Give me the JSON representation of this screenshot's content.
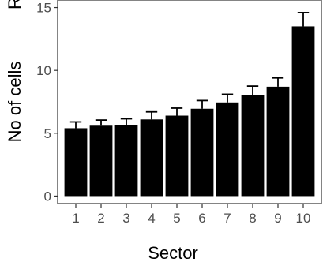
{
  "chart_data": {
    "type": "bar",
    "title": "",
    "xlabel": "Sector",
    "ylabel": "No of cells",
    "ylabel_cropped_top": "R",
    "categories": [
      "1",
      "2",
      "3",
      "4",
      "5",
      "6",
      "7",
      "8",
      "9",
      "10"
    ],
    "values": [
      5.4,
      5.6,
      5.65,
      6.1,
      6.4,
      6.95,
      7.45,
      8.05,
      8.7,
      13.5
    ],
    "error_upper": [
      5.9,
      6.05,
      6.15,
      6.7,
      7.0,
      7.6,
      8.1,
      8.75,
      9.4,
      14.6
    ],
    "yticks": [
      0,
      5,
      10,
      15
    ],
    "ytick_labels": [
      "0",
      "5",
      "10",
      "15"
    ],
    "ylim": [
      -0.6,
      15.6
    ],
    "grid": false,
    "bar_color": "#000000",
    "axis_color": "#333333"
  }
}
